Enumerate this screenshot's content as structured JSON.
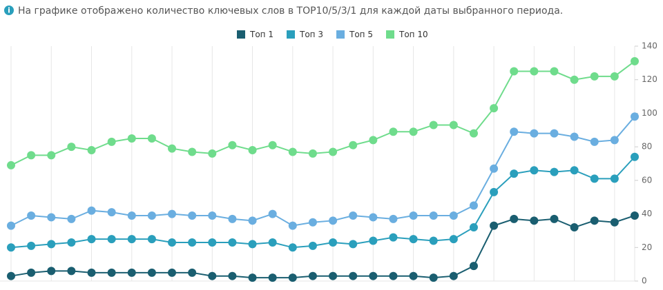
{
  "chart_data": {
    "type": "line",
    "title": "На графике отображено количество ключевых слов в TOP10/5/3/1 для каждой даты выбранного периода.",
    "categories": [
      null,
      null,
      null,
      null,
      null,
      null,
      null,
      null,
      null,
      null,
      null,
      null,
      null,
      null,
      null,
      null,
      null,
      null,
      null,
      null,
      null,
      null,
      null,
      null,
      null,
      null,
      null,
      null,
      null,
      null,
      null,
      null
    ],
    "series": [
      {
        "name": "Топ 1",
        "color": "#1a5e70",
        "values": [
          3,
          5,
          6,
          6,
          5,
          5,
          5,
          5,
          5,
          5,
          3,
          3,
          2,
          2,
          2,
          3,
          3,
          3,
          3,
          3,
          3,
          2,
          3,
          9,
          33,
          37,
          36,
          37,
          32,
          36,
          35,
          39
        ]
      },
      {
        "name": "Топ 3",
        "color": "#2a9fbc",
        "values": [
          20,
          21,
          22,
          23,
          25,
          25,
          25,
          25,
          23,
          23,
          23,
          23,
          22,
          23,
          20,
          21,
          23,
          22,
          24,
          26,
          25,
          24,
          25,
          32,
          53,
          64,
          66,
          65,
          66,
          61,
          61,
          74
        ]
      },
      {
        "name": "Топ 5",
        "color": "#6aaee0",
        "values": [
          33,
          39,
          38,
          37,
          42,
          41,
          39,
          39,
          40,
          39,
          39,
          37,
          36,
          40,
          33,
          35,
          36,
          39,
          38,
          37,
          39,
          39,
          39,
          45,
          67,
          89,
          88,
          88,
          86,
          83,
          84,
          98
        ]
      },
      {
        "name": "Топ 10",
        "color": "#6fdc8c",
        "values": [
          69,
          75,
          75,
          80,
          78,
          83,
          85,
          85,
          79,
          77,
          76,
          81,
          78,
          81,
          77,
          76,
          77,
          81,
          84,
          89,
          89,
          93,
          93,
          88,
          103,
          125,
          125,
          125,
          120,
          122,
          122,
          131
        ]
      }
    ],
    "ylim": [
      0,
      140
    ],
    "yticks": [
      0,
      20,
      40,
      60,
      80,
      100,
      120,
      140
    ],
    "y_axis_side": "right",
    "legend": "top"
  }
}
